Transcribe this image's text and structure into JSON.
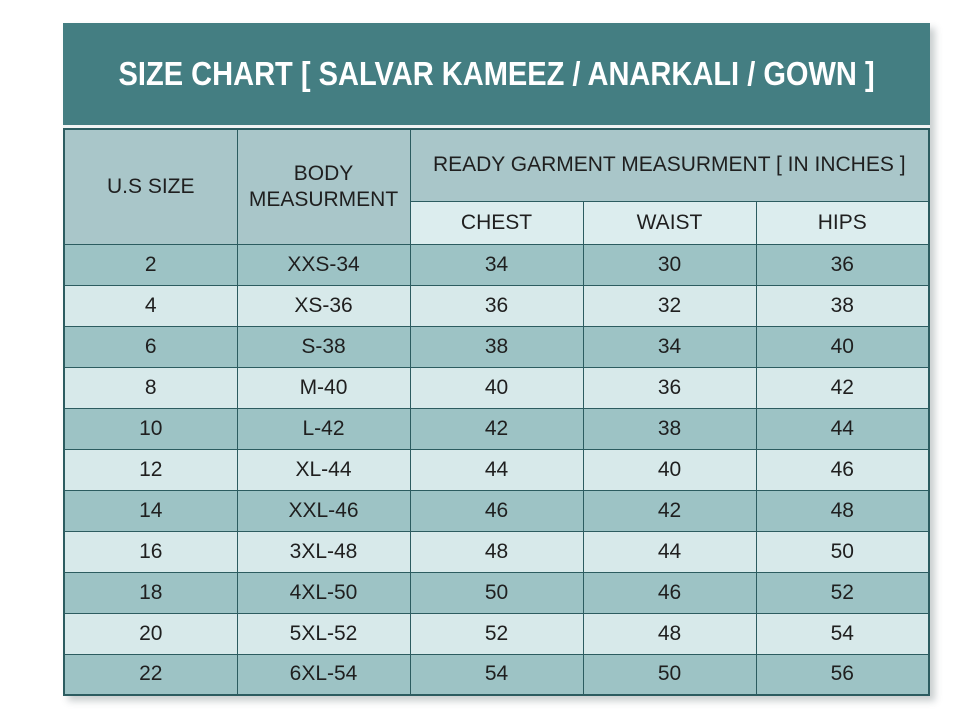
{
  "colors": {
    "title_band_bg": "#447e82",
    "title_text": "#ffffff",
    "header_bg": "#a9c6c9",
    "subheader_bg": "#dcedee",
    "row_dark_bg": "#9dc3c5",
    "row_light_bg": "#d7e9ea",
    "border": "#2c5c60",
    "body_text": "#1f1f1f"
  },
  "chart_data": {
    "type": "table",
    "title": "SIZE CHART [ SALVAR KAMEEZ / ANARKALI / GOWN ]",
    "columns": {
      "us_size": "U.S SIZE",
      "body_measurement": "BODY MEASURMENT",
      "group_header": "READY GARMENT MEASURMENT [ IN INCHES ]",
      "chest": "CHEST",
      "waist": "WAIST",
      "hips": "HIPS"
    },
    "rows": [
      [
        "2",
        "XXS-34",
        "34",
        "30",
        "36"
      ],
      [
        "4",
        "XS-36",
        "36",
        "32",
        "38"
      ],
      [
        "6",
        "S-38",
        "38",
        "34",
        "40"
      ],
      [
        "8",
        "M-40",
        "40",
        "36",
        "42"
      ],
      [
        "10",
        "L-42",
        "42",
        "38",
        "44"
      ],
      [
        "12",
        "XL-44",
        "44",
        "40",
        "46"
      ],
      [
        "14",
        "XXL-46",
        "46",
        "42",
        "48"
      ],
      [
        "16",
        "3XL-48",
        "48",
        "44",
        "50"
      ],
      [
        "18",
        "4XL-50",
        "50",
        "46",
        "52"
      ],
      [
        "20",
        "5XL-52",
        "52",
        "48",
        "54"
      ],
      [
        "22",
        "6XL-54",
        "54",
        "50",
        "56"
      ]
    ]
  }
}
